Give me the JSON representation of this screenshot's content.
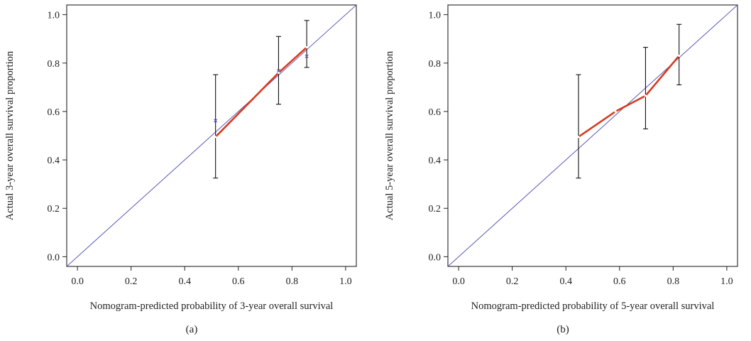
{
  "chart_data": [
    {
      "type": "line",
      "panel_label": "(a)",
      "xlabel": "Nomogram-predicted probability of 3-year overall survival",
      "ylabel": "Actual 3-year overall survival proportion",
      "xlim": [
        -0.04,
        1.04
      ],
      "ylim": [
        -0.04,
        1.04
      ],
      "xticks": [
        "0.0",
        "0.2",
        "0.4",
        "0.6",
        "0.8",
        "1.0"
      ],
      "yticks": [
        "0.0",
        "0.2",
        "0.4",
        "0.6",
        "0.8",
        "1.0"
      ],
      "grid": false,
      "colors": {
        "reference": "#5a5ab8",
        "calibration": "#d93a1e",
        "error_bar": "#111111",
        "corrected": "#5a5ab8"
      },
      "reference_line": [
        [
          -0.04,
          -0.04
        ],
        [
          1.04,
          1.04
        ]
      ],
      "series": [
        {
          "x": [
            0.515,
            0.75,
            0.855
          ],
          "y": [
            0.495,
            0.76,
            0.865
          ],
          "lower": [
            0.325,
            0.63,
            0.782
          ],
          "upper": [
            0.752,
            0.91,
            0.976
          ]
        }
      ],
      "corrected_points": [
        {
          "x": 0.515,
          "y": 0.562
        },
        {
          "x": 0.75,
          "y": 0.768
        },
        {
          "x": 0.855,
          "y": 0.828
        }
      ]
    },
    {
      "type": "line",
      "panel_label": "(b)",
      "xlabel": "Nomogram-predicted probability of 5-year overall survival",
      "ylabel": "Actual 5-year overall survival proportion",
      "xlim": [
        -0.04,
        1.04
      ],
      "ylim": [
        -0.04,
        1.04
      ],
      "xticks": [
        "0.0",
        "0.2",
        "0.4",
        "0.6",
        "0.8",
        "1.0"
      ],
      "yticks": [
        "0.0",
        "0.2",
        "0.4",
        "0.6",
        "0.8",
        "1.0"
      ],
      "grid": false,
      "colors": {
        "reference": "#5a5ab8",
        "calibration": "#d93a1e",
        "error_bar": "#111111"
      },
      "reference_line": [
        [
          -0.04,
          -0.04
        ],
        [
          1.04,
          1.04
        ]
      ],
      "series": [
        {
          "x": [
            0.447,
            0.585,
            0.697,
            0.822
          ],
          "y": [
            0.495,
            0.6,
            0.665,
            0.83
          ],
          "lower": [
            0.325,
            null,
            0.528,
            0.71
          ],
          "upper": [
            0.752,
            null,
            0.865,
            0.96
          ]
        }
      ]
    }
  ]
}
